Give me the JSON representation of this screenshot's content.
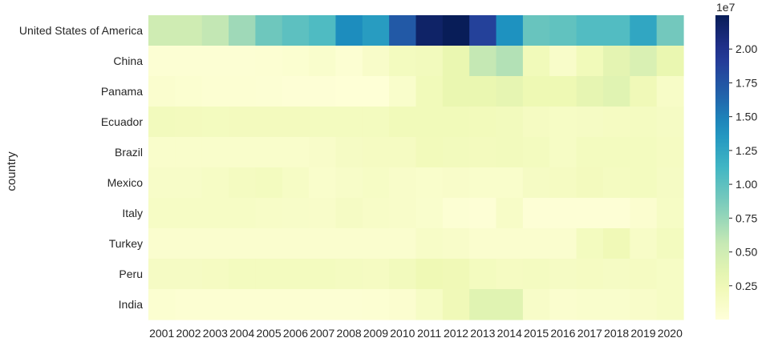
{
  "chart_data": {
    "type": "heatmap",
    "title": "",
    "xlabel": "",
    "ylabel": "country",
    "x": [
      "2001",
      "2002",
      "2003",
      "2004",
      "2005",
      "2006",
      "2007",
      "2008",
      "2009",
      "2010",
      "2011",
      "2012",
      "2013",
      "2014",
      "2015",
      "2016",
      "2017",
      "2018",
      "2019",
      "2020"
    ],
    "y": [
      "United States of America",
      "China",
      "Panama",
      "Ecuador",
      "Brazil",
      "Mexico",
      "Italy",
      "Turkey",
      "Peru",
      "India"
    ],
    "values": [
      [
        5000000.0,
        5000000.0,
        5800000.0,
        7200000.0,
        9200000.0,
        10000000.0,
        10600000.0,
        14300000.0,
        13200000.0,
        17200000.0,
        21800000.0,
        22500000.0,
        18800000.0,
        14000000.0,
        9500000.0,
        9800000.0,
        10500000.0,
        10500000.0,
        12500000.0,
        9000000.0
      ],
      [
        400000.0,
        400000.0,
        400000.0,
        400000.0,
        500000.0,
        600000.0,
        900000.0,
        500000.0,
        1100000.0,
        1800000.0,
        2000000.0,
        3000000.0,
        5700000.0,
        6400000.0,
        2200000.0,
        1100000.0,
        2200000.0,
        3500000.0,
        4300000.0,
        3000000.0
      ],
      [
        800000.0,
        600000.0,
        500000.0,
        500000.0,
        400000.0,
        300000.0,
        300000.0,
        200000.0,
        200000.0,
        1000000.0,
        2200000.0,
        3000000.0,
        3000000.0,
        3300000.0,
        2600000.0,
        2600000.0,
        3300000.0,
        3800000.0,
        2300000.0,
        1300000.0
      ],
      [
        2000000.0,
        1900000.0,
        1800000.0,
        1900000.0,
        1900000.0,
        1900000.0,
        1800000.0,
        1800000.0,
        1800000.0,
        2200000.0,
        2200000.0,
        2200000.0,
        2100000.0,
        2000000.0,
        1600000.0,
        1400000.0,
        1500000.0,
        1600000.0,
        1700000.0,
        1500000.0
      ],
      [
        1000000.0,
        1000000.0,
        1000000.0,
        1000000.0,
        1000000.0,
        1000000.0,
        1100000.0,
        1500000.0,
        1600000.0,
        1600000.0,
        2100000.0,
        2000000.0,
        1900000.0,
        2000000.0,
        1800000.0,
        1400000.0,
        1800000.0,
        1800000.0,
        1800000.0,
        1600000.0
      ],
      [
        1200000.0,
        1200000.0,
        1400000.0,
        1700000.0,
        1800000.0,
        1400000.0,
        1000000.0,
        1200000.0,
        1400000.0,
        1100000.0,
        1000000.0,
        1100000.0,
        1000000.0,
        1000000.0,
        1500000.0,
        1600000.0,
        1900000.0,
        1700000.0,
        1800000.0,
        1500000.0
      ],
      [
        1400000.0,
        1400000.0,
        1400000.0,
        1400000.0,
        1300000.0,
        1200000.0,
        1100000.0,
        1500000.0,
        1300000.0,
        1100000.0,
        900000.0,
        400000.0,
        300000.0,
        1300000.0,
        300000.0,
        300000.0,
        300000.0,
        300000.0,
        700000.0,
        1400000.0
      ],
      [
        800000.0,
        800000.0,
        800000.0,
        800000.0,
        800000.0,
        800000.0,
        800000.0,
        800000.0,
        800000.0,
        800000.0,
        1300000.0,
        1100000.0,
        800000.0,
        800000.0,
        800000.0,
        800000.0,
        1800000.0,
        2400000.0,
        1300000.0,
        1800000.0
      ],
      [
        1500000.0,
        1500000.0,
        1600000.0,
        1800000.0,
        1800000.0,
        1800000.0,
        1800000.0,
        1700000.0,
        1600000.0,
        2000000.0,
        2500000.0,
        2400000.0,
        1800000.0,
        1600000.0,
        1700000.0,
        1500000.0,
        1600000.0,
        1500000.0,
        1600000.0,
        1400000.0
      ],
      [
        600000.0,
        500000.0,
        500000.0,
        500000.0,
        500000.0,
        500000.0,
        400000.0,
        400000.0,
        500000.0,
        700000.0,
        1400000.0,
        2300000.0,
        3800000.0,
        3800000.0,
        1200000.0,
        800000.0,
        900000.0,
        900000.0,
        1100000.0,
        1400000.0
      ]
    ],
    "colormap": "YlGnBu",
    "vmin": 0,
    "vmax": 22500000,
    "colorbar": {
      "ticks": [
        0.25,
        0.5,
        0.75,
        1.0,
        1.25,
        1.5,
        1.75,
        2.0
      ],
      "tick_labels": [
        "0.25",
        "0.50",
        "0.75",
        "1.00",
        "1.25",
        "1.50",
        "1.75",
        "2.00"
      ],
      "offset_label": "1e7",
      "scale": 10000000
    },
    "legend": "colorbar-right"
  }
}
